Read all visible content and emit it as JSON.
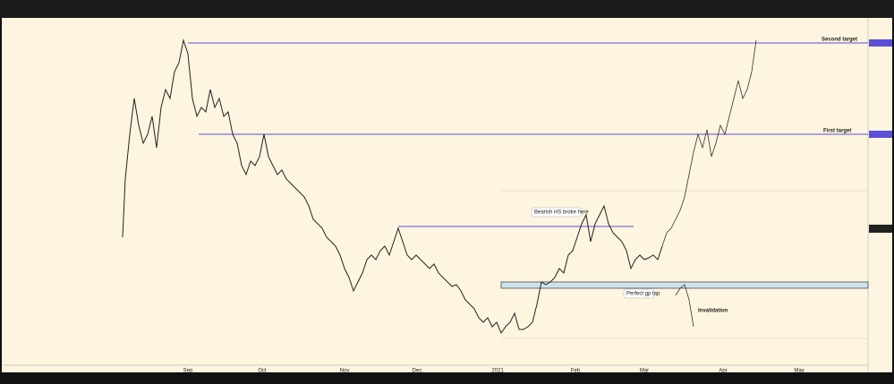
{
  "annotations": {
    "second_target": "Second target",
    "first_target": "First target",
    "bearish_hs": "Bearish HS broke here",
    "perfect_gp": "Perfect gp tap",
    "invalidation": "Invalidation"
  },
  "x_axis": {
    "labels": [
      "Sep",
      "Oct",
      "Nov",
      "Dec",
      "2021",
      "Feb",
      "Mar",
      "Apr",
      "May"
    ]
  }
}
